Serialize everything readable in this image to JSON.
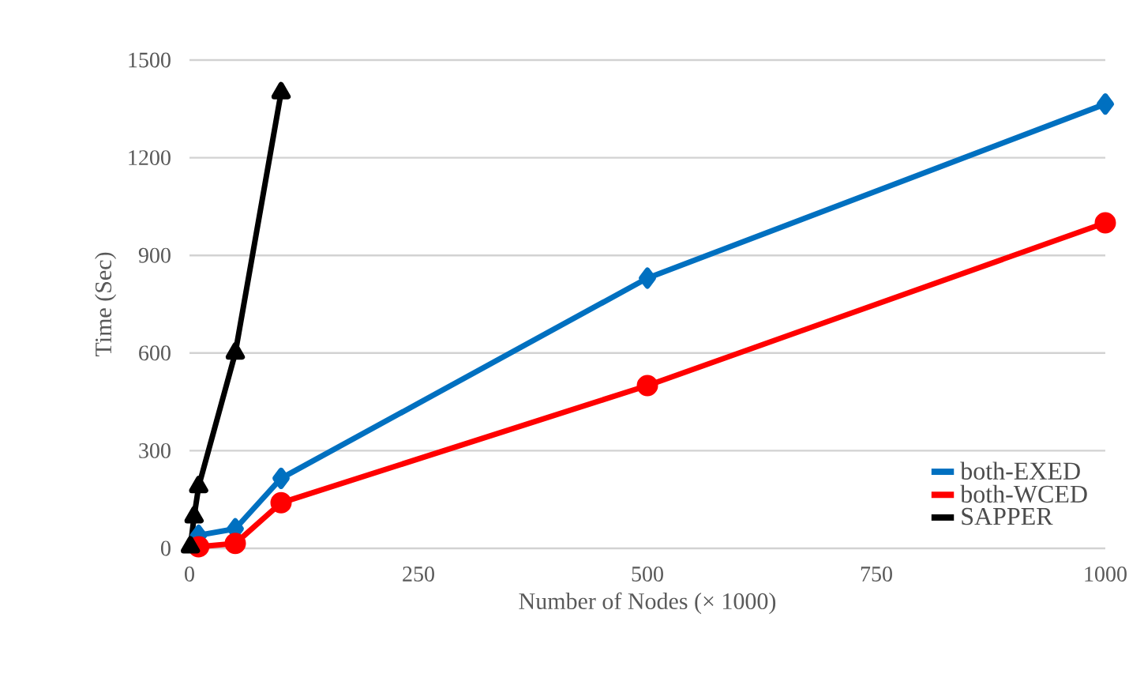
{
  "chart_data": {
    "type": "line",
    "xlabel": "Number of Nodes (× 1000)",
    "ylabel": "Time (Sec)",
    "xlim": [
      0,
      1000
    ],
    "xticks": [
      0,
      250,
      500,
      750,
      1000
    ],
    "ylim": [
      0,
      1500
    ],
    "yticks": [
      0,
      300,
      600,
      900,
      1200,
      1500
    ],
    "grid": "y",
    "legend": "bottom right",
    "line_style": "solid",
    "series": [
      {
        "name": "both-EXED",
        "color": "#0070c0",
        "marker": "diamond",
        "x": [
          10,
          50,
          100,
          500,
          1000
        ],
        "values": [
          40,
          60,
          215,
          830,
          1365
        ]
      },
      {
        "name": "both-WCED",
        "color": "#ff0000",
        "marker": "circle",
        "x": [
          10,
          50,
          100,
          500,
          1000
        ],
        "values": [
          5,
          15,
          140,
          500,
          1000
        ]
      },
      {
        "name": "SAPPER",
        "color": "#000000",
        "marker": "triangle",
        "x": [
          1,
          5,
          10,
          50,
          100
        ],
        "values": [
          5,
          97,
          190,
          600,
          1400
        ]
      }
    ]
  }
}
